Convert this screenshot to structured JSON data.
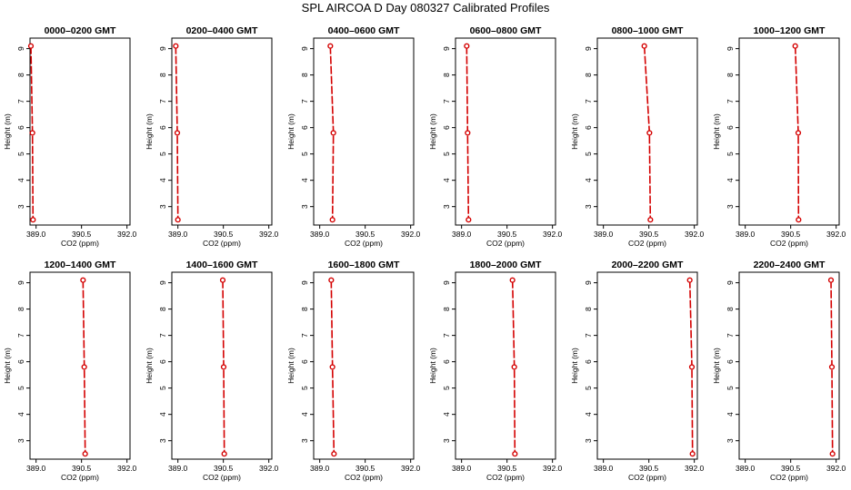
{
  "figure": {
    "title": "SPL AIRCOA D  Day 080327  Calibrated Profiles",
    "colors": {
      "profile": "#d40000",
      "axis": "#000000",
      "background": "#ffffff"
    }
  },
  "chart_data": [
    {
      "type": "line",
      "title": "0000–0200 GMT",
      "xlabel": "CO2 (ppm)",
      "ylabel": "Height (m)",
      "xlim": [
        388.8,
        392.1
      ],
      "ylim": [
        2.3,
        9.4
      ],
      "xticks": [
        "389.0",
        "390.5",
        "392.0"
      ],
      "yticks": [
        "3",
        "4",
        "5",
        "6",
        "7",
        "8",
        "9"
      ],
      "x": [
        388.83,
        388.88,
        388.9
      ],
      "y": [
        9.1,
        5.8,
        2.5
      ]
    },
    {
      "type": "line",
      "title": "0200–0400 GMT",
      "xlabel": "CO2 (ppm)",
      "ylabel": "Height (m)",
      "xlim": [
        388.8,
        392.1
      ],
      "ylim": [
        2.3,
        9.4
      ],
      "xticks": [
        "389.0",
        "390.5",
        "392.0"
      ],
      "yticks": [
        "3",
        "4",
        "5",
        "6",
        "7",
        "8",
        "9"
      ],
      "x": [
        388.93,
        388.98,
        389.0
      ],
      "y": [
        9.1,
        5.8,
        2.5
      ]
    },
    {
      "type": "line",
      "title": "0400–0600 GMT",
      "xlabel": "CO2 (ppm)",
      "ylabel": "Height (m)",
      "xlim": [
        388.8,
        392.1
      ],
      "ylim": [
        2.3,
        9.4
      ],
      "xticks": [
        "389.0",
        "390.5",
        "392.0"
      ],
      "yticks": [
        "3",
        "4",
        "5",
        "6",
        "7",
        "8",
        "9"
      ],
      "x": [
        389.35,
        389.45,
        389.42
      ],
      "y": [
        9.1,
        5.8,
        2.5
      ]
    },
    {
      "type": "line",
      "title": "0600–0800 GMT",
      "xlabel": "CO2 (ppm)",
      "ylabel": "Height (m)",
      "xlim": [
        388.8,
        392.1
      ],
      "ylim": [
        2.3,
        9.4
      ],
      "xticks": [
        "389.0",
        "390.5",
        "392.0"
      ],
      "yticks": [
        "3",
        "4",
        "5",
        "6",
        "7",
        "8",
        "9"
      ],
      "x": [
        389.17,
        389.2,
        389.23
      ],
      "y": [
        9.1,
        5.8,
        2.5
      ]
    },
    {
      "type": "line",
      "title": "0800–1000 GMT",
      "xlabel": "CO2 (ppm)",
      "ylabel": "Height (m)",
      "xlim": [
        388.8,
        392.1
      ],
      "ylim": [
        2.3,
        9.4
      ],
      "xticks": [
        "389.0",
        "390.5",
        "392.0"
      ],
      "yticks": [
        "3",
        "4",
        "5",
        "6",
        "7",
        "8",
        "9"
      ],
      "x": [
        390.35,
        390.52,
        390.55
      ],
      "y": [
        9.1,
        5.8,
        2.5
      ]
    },
    {
      "type": "line",
      "title": "1000–1200 GMT",
      "xlabel": "CO2 (ppm)",
      "ylabel": "Height (m)",
      "xlim": [
        388.8,
        392.1
      ],
      "ylim": [
        2.3,
        9.4
      ],
      "xticks": [
        "389.0",
        "390.5",
        "392.0"
      ],
      "yticks": [
        "3",
        "4",
        "5",
        "6",
        "7",
        "8",
        "9"
      ],
      "x": [
        390.65,
        390.75,
        390.76
      ],
      "y": [
        9.1,
        5.8,
        2.5
      ]
    },
    {
      "type": "line",
      "title": "1200–1400 GMT",
      "xlabel": "CO2 (ppm)",
      "ylabel": "Height (m)",
      "xlim": [
        388.8,
        392.1
      ],
      "ylim": [
        2.3,
        9.4
      ],
      "xticks": [
        "389.0",
        "390.5",
        "392.0"
      ],
      "yticks": [
        "3",
        "4",
        "5",
        "6",
        "7",
        "8",
        "9"
      ],
      "x": [
        390.55,
        390.59,
        390.62
      ],
      "y": [
        9.1,
        5.8,
        2.5
      ]
    },
    {
      "type": "line",
      "title": "1400–1600 GMT",
      "xlabel": "CO2 (ppm)",
      "ylabel": "Height (m)",
      "xlim": [
        388.8,
        392.1
      ],
      "ylim": [
        2.3,
        9.4
      ],
      "xticks": [
        "389.0",
        "390.5",
        "392.0"
      ],
      "yticks": [
        "3",
        "4",
        "5",
        "6",
        "7",
        "8",
        "9"
      ],
      "x": [
        390.48,
        390.51,
        390.53
      ],
      "y": [
        9.1,
        5.8,
        2.5
      ]
    },
    {
      "type": "line",
      "title": "1600–1800 GMT",
      "xlabel": "CO2 (ppm)",
      "ylabel": "Height (m)",
      "xlim": [
        388.8,
        392.1
      ],
      "ylim": [
        2.3,
        9.4
      ],
      "xticks": [
        "389.0",
        "390.5",
        "392.0"
      ],
      "yticks": [
        "3",
        "4",
        "5",
        "6",
        "7",
        "8",
        "9"
      ],
      "x": [
        389.38,
        389.42,
        389.47
      ],
      "y": [
        9.1,
        5.8,
        2.5
      ]
    },
    {
      "type": "line",
      "title": "1800–2000 GMT",
      "xlabel": "CO2 (ppm)",
      "ylabel": "Height (m)",
      "xlim": [
        388.8,
        392.1
      ],
      "ylim": [
        2.3,
        9.4
      ],
      "xticks": [
        "389.0",
        "390.5",
        "392.0"
      ],
      "yticks": [
        "3",
        "4",
        "5",
        "6",
        "7",
        "8",
        "9"
      ],
      "x": [
        390.68,
        390.74,
        390.76
      ],
      "y": [
        9.1,
        5.8,
        2.5
      ]
    },
    {
      "type": "line",
      "title": "2000–2200 GMT",
      "xlabel": "CO2 (ppm)",
      "ylabel": "Height (m)",
      "xlim": [
        388.8,
        392.1
      ],
      "ylim": [
        2.3,
        9.4
      ],
      "xticks": [
        "389.0",
        "390.5",
        "392.0"
      ],
      "yticks": [
        "3",
        "4",
        "5",
        "6",
        "7",
        "8",
        "9"
      ],
      "x": [
        391.85,
        391.92,
        391.94
      ],
      "y": [
        9.1,
        5.8,
        2.5
      ]
    },
    {
      "type": "line",
      "title": "2200–2400 GMT",
      "xlabel": "CO2 (ppm)",
      "ylabel": "Height (m)",
      "xlim": [
        388.8,
        392.1
      ],
      "ylim": [
        2.3,
        9.4
      ],
      "xticks": [
        "389.0",
        "390.5",
        "392.0"
      ],
      "yticks": [
        "3",
        "4",
        "5",
        "6",
        "7",
        "8",
        "9"
      ],
      "x": [
        391.83,
        391.86,
        391.88
      ],
      "y": [
        9.1,
        5.8,
        2.5
      ]
    }
  ]
}
